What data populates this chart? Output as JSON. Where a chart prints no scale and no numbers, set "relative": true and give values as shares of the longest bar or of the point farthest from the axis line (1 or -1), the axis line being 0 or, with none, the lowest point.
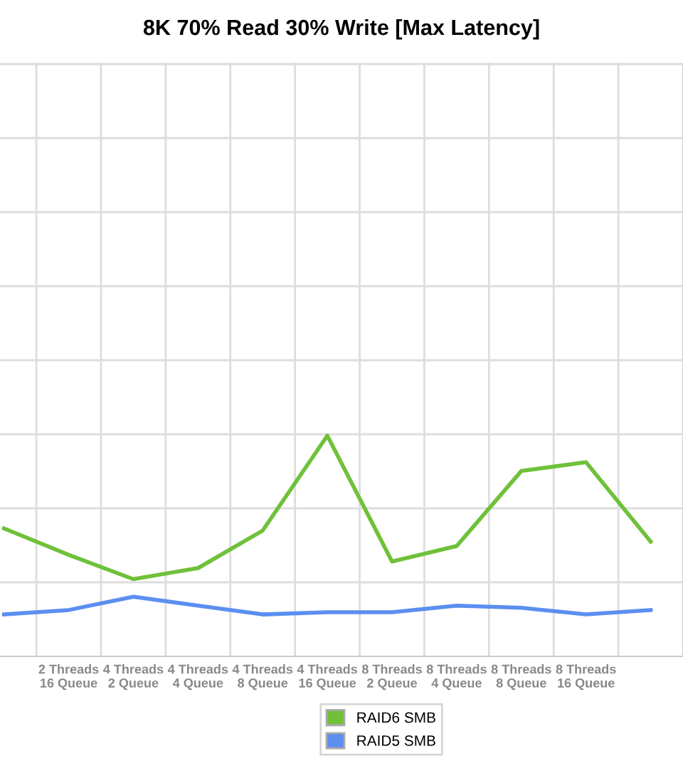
{
  "chart_data": {
    "type": "line",
    "title": "8K 70% Read 30% Write [Max Latency]",
    "relative": true,
    "categories": [
      null,
      "2 Threads\n16 Queue",
      "4 Threads\n2 Queue",
      "4 Threads\n4 Queue",
      "4 Threads\n8 Queue",
      "4 Threads\n16 Queue",
      "8 Threads\n2 Queue",
      "8 Threads\n4 Queue",
      "8 Threads\n8 Queue",
      "8 Threads\n16 Queue",
      null
    ],
    "series": [
      {
        "name": "RAID6 SMB",
        "color": "#6fc13a",
        "values": [
          0.58,
          0.46,
          0.35,
          0.4,
          0.57,
          1,
          0.43,
          0.5,
          0.84,
          0.88,
          0.52
        ]
      },
      {
        "name": "RAID5 SMB",
        "color": "#5b8ff0",
        "values": [
          0.19,
          0.21,
          0.27,
          0.23,
          0.19,
          0.2,
          0.2,
          0.23,
          0.22,
          0.19,
          0.21
        ]
      }
    ],
    "grid": true,
    "legend": "bottom",
    "marker": "none",
    "line_style": "solid"
  }
}
